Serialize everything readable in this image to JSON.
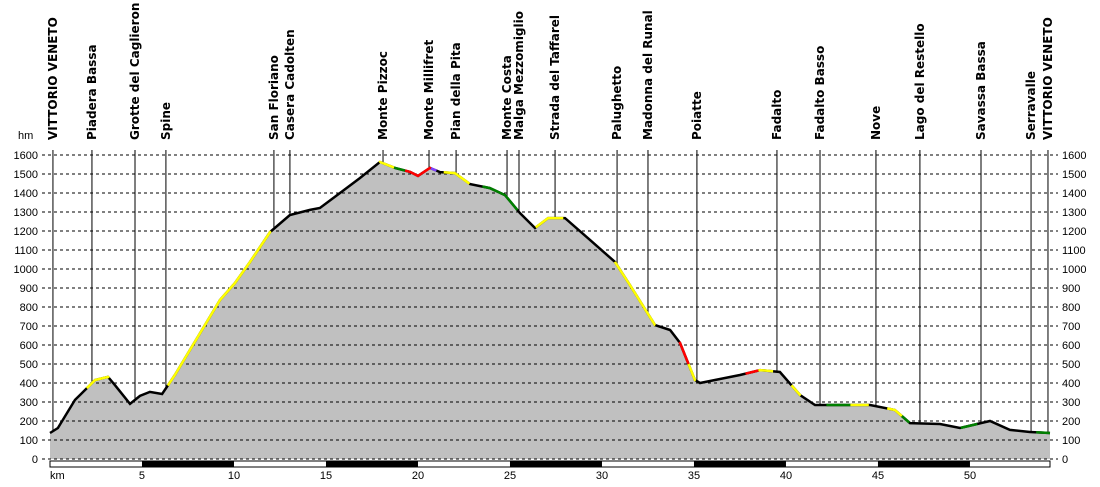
{
  "chart_data": {
    "type": "area",
    "title": "",
    "xlabel": "km",
    "ylabel": "hm",
    "xlim": [
      0,
      54.35
    ],
    "ylim": [
      0,
      1600
    ],
    "yticks": [
      0,
      100,
      200,
      300,
      400,
      500,
      600,
      700,
      800,
      900,
      1000,
      1100,
      1200,
      1300,
      1400,
      1500,
      1600
    ],
    "xticks": [
      5,
      10,
      15,
      20,
      25,
      30,
      35,
      40,
      45,
      50
    ],
    "grid": true,
    "fill_color": "#c0c0c0",
    "line_color": "#000000",
    "profile": [
      [
        0,
        137
      ],
      [
        0.43,
        163
      ],
      [
        1.36,
        311
      ],
      [
        1.63,
        337
      ],
      [
        2.45,
        416
      ],
      [
        3.15,
        432
      ],
      [
        3.53,
        389
      ],
      [
        4.35,
        290
      ],
      [
        4.89,
        332
      ],
      [
        5.43,
        353
      ],
      [
        6.09,
        342
      ],
      [
        6.79,
        442
      ],
      [
        7.61,
        574
      ],
      [
        8.42,
        705
      ],
      [
        9.24,
        837
      ],
      [
        10.05,
        926
      ],
      [
        10.87,
        1037
      ],
      [
        11.96,
        1195
      ],
      [
        13.04,
        1284
      ],
      [
        14.13,
        1311
      ],
      [
        14.67,
        1321
      ],
      [
        15.76,
        1400
      ],
      [
        16.85,
        1479
      ],
      [
        17.93,
        1563
      ],
      [
        18.75,
        1532
      ],
      [
        19.57,
        1511
      ],
      [
        20.0,
        1490
      ],
      [
        20.65,
        1532
      ],
      [
        21.2,
        1510
      ],
      [
        22.0,
        1505
      ],
      [
        22.83,
        1447
      ],
      [
        23.91,
        1426
      ],
      [
        24.73,
        1389
      ],
      [
        25.54,
        1295
      ],
      [
        26.36,
        1216
      ],
      [
        27.07,
        1268
      ],
      [
        27.99,
        1268
      ],
      [
        29.35,
        1153
      ],
      [
        30.71,
        1037
      ],
      [
        31.52,
        916
      ],
      [
        32.88,
        705
      ],
      [
        33.7,
        679
      ],
      [
        34.24,
        611
      ],
      [
        35.05,
        416
      ],
      [
        35.33,
        400
      ],
      [
        37.5,
        442
      ],
      [
        38.59,
        468
      ],
      [
        39.67,
        458
      ],
      [
        40.76,
        337
      ],
      [
        41.58,
        284
      ],
      [
        42.93,
        284
      ],
      [
        44.57,
        284
      ],
      [
        45.92,
        258
      ],
      [
        46.74,
        189
      ],
      [
        48.37,
        184
      ],
      [
        49.46,
        163
      ],
      [
        51.09,
        200
      ],
      [
        52.17,
        153
      ],
      [
        53.26,
        142
      ],
      [
        54.35,
        137
      ]
    ],
    "segments": [
      {
        "from": 2.0,
        "to": 3.2,
        "color": "#ffff00"
      },
      {
        "from": 6.4,
        "to": 12.0,
        "color": "#ffff00"
      },
      {
        "from": 17.9,
        "to": 18.7,
        "color": "#ffff00"
      },
      {
        "from": 18.7,
        "to": 19.3,
        "color": "#008000"
      },
      {
        "from": 19.3,
        "to": 20.2,
        "color": "#ff0000"
      },
      {
        "from": 20.2,
        "to": 20.7,
        "color": "#ff0000"
      },
      {
        "from": 20.7,
        "to": 21.0,
        "color": "#8040ff"
      },
      {
        "from": 21.4,
        "to": 22.8,
        "color": "#ffff00"
      },
      {
        "from": 23.5,
        "to": 25.4,
        "color": "#008000"
      },
      {
        "from": 26.4,
        "to": 27.9,
        "color": "#ffff00"
      },
      {
        "from": 30.7,
        "to": 32.9,
        "color": "#ffff00"
      },
      {
        "from": 34.2,
        "to": 34.7,
        "color": "#ff0000"
      },
      {
        "from": 34.7,
        "to": 35.1,
        "color": "#ffff00"
      },
      {
        "from": 37.8,
        "to": 38.5,
        "color": "#ff0000"
      },
      {
        "from": 38.5,
        "to": 39.3,
        "color": "#ffff00"
      },
      {
        "from": 40.3,
        "to": 40.8,
        "color": "#ffff00"
      },
      {
        "from": 42.2,
        "to": 43.5,
        "color": "#008000"
      },
      {
        "from": 43.5,
        "to": 44.5,
        "color": "#ffff00"
      },
      {
        "from": 45.5,
        "to": 46.3,
        "color": "#ffff00"
      },
      {
        "from": 46.3,
        "to": 46.7,
        "color": "#008000"
      },
      {
        "from": 49.5,
        "to": 50.4,
        "color": "#008000"
      },
      {
        "from": 53.6,
        "to": 54.35,
        "color": "#008000"
      }
    ],
    "waypoints": [
      {
        "name": "VITTORIO VENETO",
        "km": 0.16
      },
      {
        "name": "Piadera Bassa",
        "km": 2.28
      },
      {
        "name": "Grotte del Caglieron",
        "km": 4.62
      },
      {
        "name": "Spine",
        "km": 6.3
      },
      {
        "name": "San Floriano",
        "km": 12.17
      },
      {
        "name": "Casera Cadolten",
        "km": 13.04
      },
      {
        "name": "Monte Pizzoc",
        "km": 18.1
      },
      {
        "name": "Monte Millifret",
        "km": 20.6
      },
      {
        "name": "Pian della Pita",
        "km": 22.07
      },
      {
        "name": "Monte Costa",
        "km": 24.84
      },
      {
        "name": "Malga Mezzomiglio",
        "km": 25.49
      },
      {
        "name": "Strada del Taffarel",
        "km": 27.45
      },
      {
        "name": "Palughetto",
        "km": 30.82
      },
      {
        "name": "Madonna del Runal",
        "km": 32.5
      },
      {
        "name": "Poiatte",
        "km": 35.16
      },
      {
        "name": "Fadalto",
        "km": 39.51
      },
      {
        "name": "Fadalto Basso",
        "km": 41.85
      },
      {
        "name": "Nove",
        "km": 44.89
      },
      {
        "name": "Lago del Restello",
        "km": 47.28
      },
      {
        "name": "Savassa Bassa",
        "km": 50.6
      },
      {
        "name": "Serravalle",
        "km": 53.32
      },
      {
        "name": "VITTORIO VENETO",
        "km": 54.24
      }
    ]
  }
}
